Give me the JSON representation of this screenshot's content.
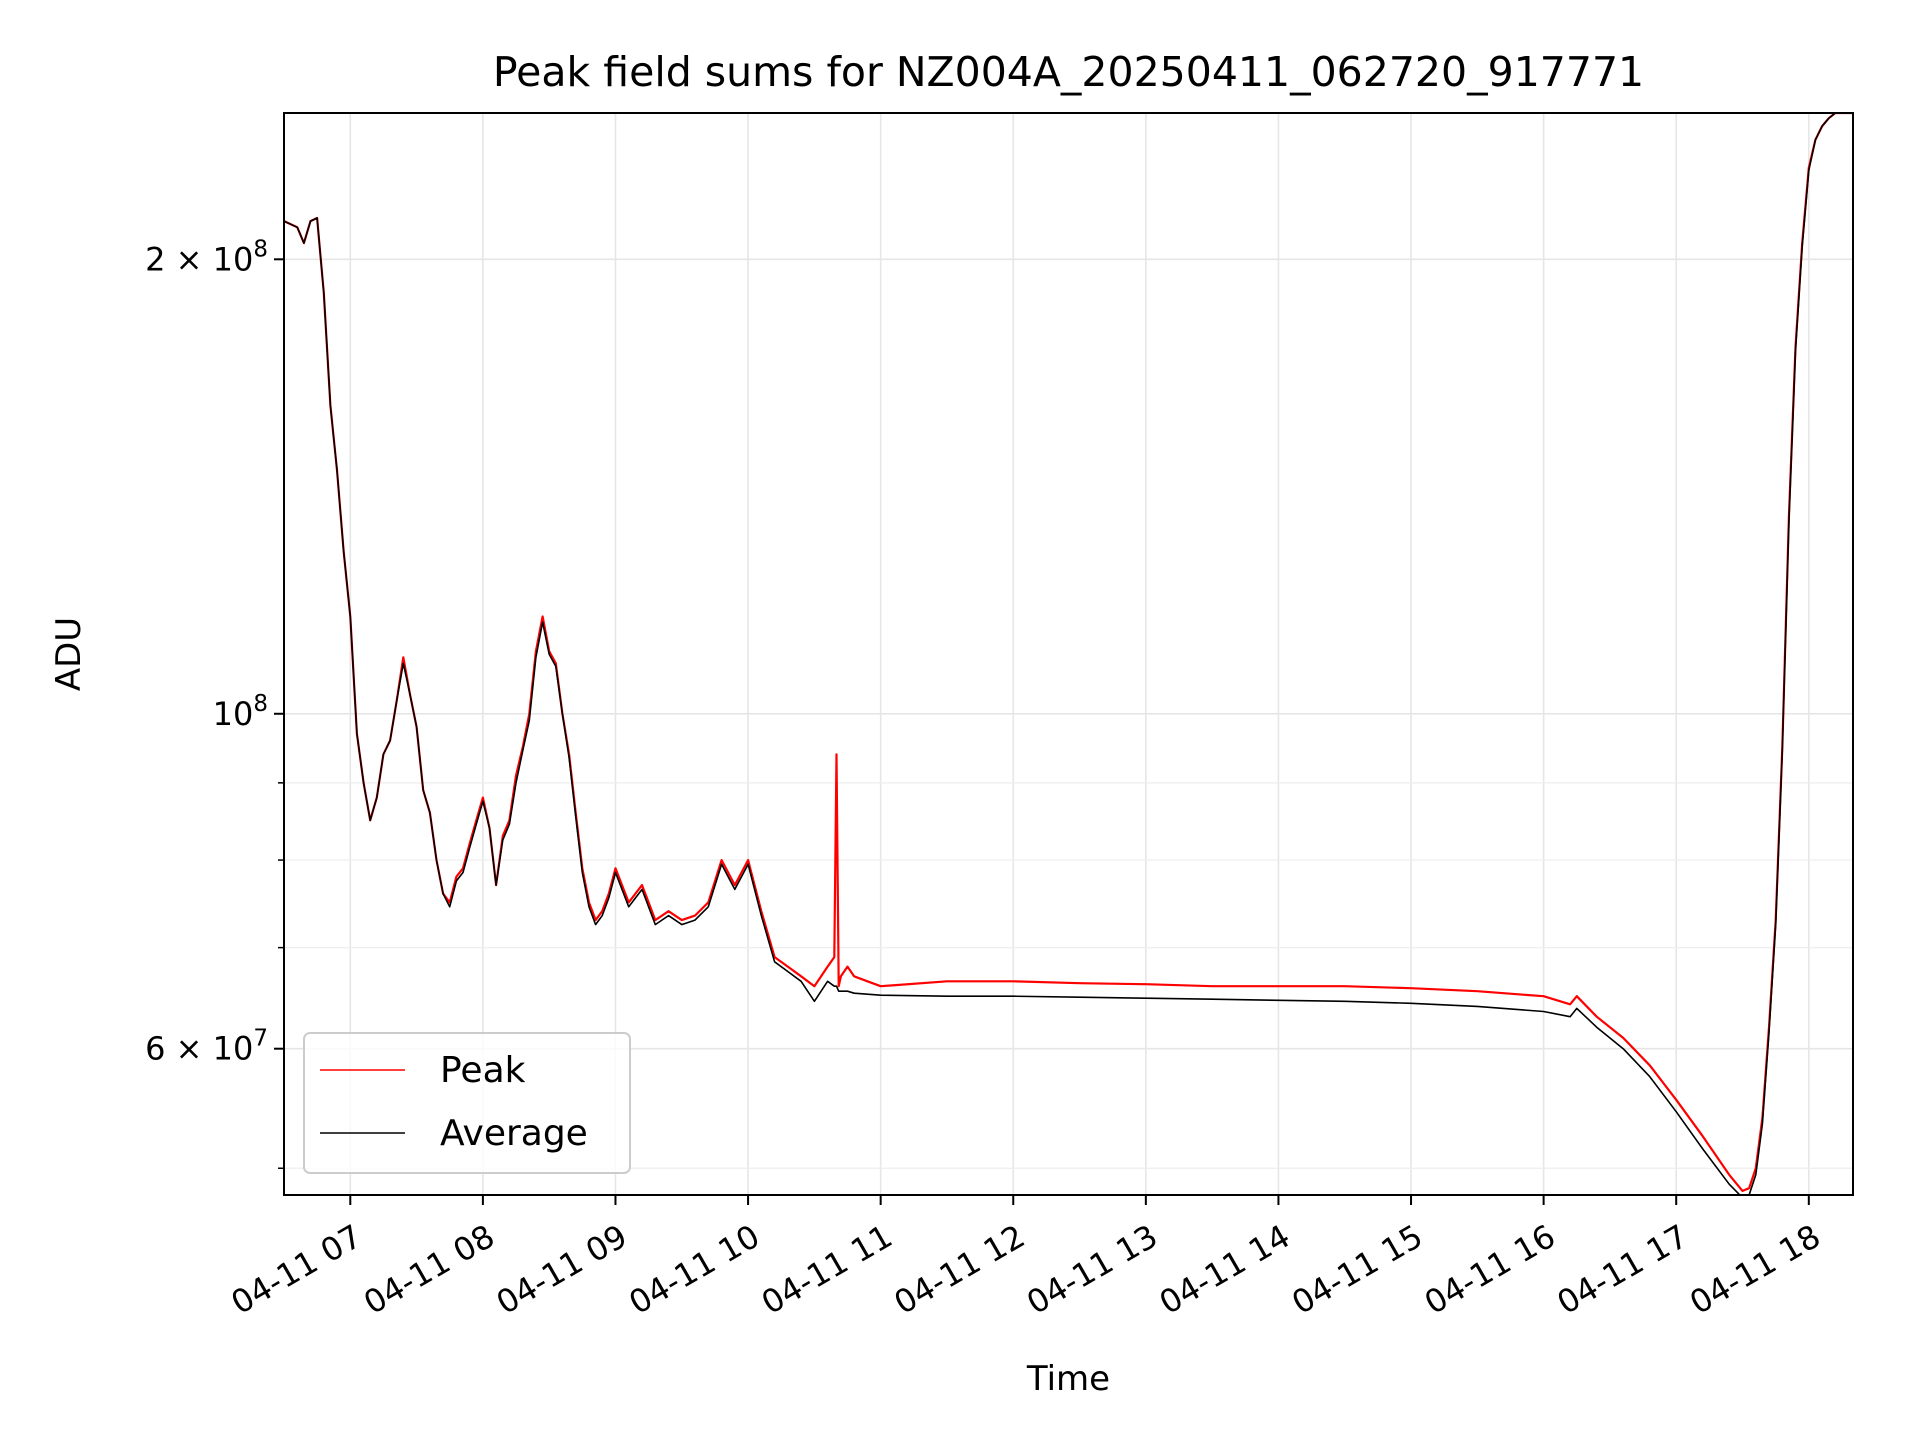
{
  "chart_data": {
    "type": "line",
    "title": "Peak field sums for NZ004A_20250411_062720_917771",
    "xlabel": "Time",
    "ylabel": "ADU",
    "yscale": "log",
    "grid": true,
    "legend_position": "lower-left",
    "xlim": [
      "2025-04-11 06:30",
      "2025-04-11 18:20"
    ],
    "ylim": [
      48000000,
      250000000
    ],
    "x_ticks": [
      {
        "value": "2025-04-11 07:00",
        "label": "04-11 07"
      },
      {
        "value": "2025-04-11 08:00",
        "label": "04-11 08"
      },
      {
        "value": "2025-04-11 09:00",
        "label": "04-11 09"
      },
      {
        "value": "2025-04-11 10:00",
        "label": "04-11 10"
      },
      {
        "value": "2025-04-11 11:00",
        "label": "04-11 11"
      },
      {
        "value": "2025-04-11 12:00",
        "label": "04-11 12"
      },
      {
        "value": "2025-04-11 13:00",
        "label": "04-11 13"
      },
      {
        "value": "2025-04-11 14:00",
        "label": "04-11 14"
      },
      {
        "value": "2025-04-11 15:00",
        "label": "04-11 15"
      },
      {
        "value": "2025-04-11 16:00",
        "label": "04-11 16"
      },
      {
        "value": "2025-04-11 17:00",
        "label": "04-11 17"
      },
      {
        "value": "2025-04-11 18:00",
        "label": "04-11 18"
      }
    ],
    "y_major_ticks": [
      {
        "value": 200000000,
        "mantissa": "2 × 10",
        "exponent": "8"
      },
      {
        "value": 100000000,
        "mantissa": "10",
        "exponent": "8"
      },
      {
        "value": 60000000,
        "mantissa": "6 × 10",
        "exponent": "7"
      }
    ],
    "y_minor_ticks": [
      50000000,
      70000000,
      80000000,
      90000000
    ],
    "series": [
      {
        "name": "Peak",
        "color": "#ff0000",
        "x": [
          "2025-04-11 06:30",
          "2025-04-11 06:36",
          "2025-04-11 06:39",
          "2025-04-11 06:42",
          "2025-04-11 06:45",
          "2025-04-11 06:48",
          "2025-04-11 06:51",
          "2025-04-11 06:54",
          "2025-04-11 06:57",
          "2025-04-11 07:00",
          "2025-04-11 07:03",
          "2025-04-11 07:06",
          "2025-04-11 07:09",
          "2025-04-11 07:12",
          "2025-04-11 07:15",
          "2025-04-11 07:18",
          "2025-04-11 07:21",
          "2025-04-11 07:24",
          "2025-04-11 07:27",
          "2025-04-11 07:30",
          "2025-04-11 07:33",
          "2025-04-11 07:36",
          "2025-04-11 07:39",
          "2025-04-11 07:42",
          "2025-04-11 07:45",
          "2025-04-11 07:48",
          "2025-04-11 07:51",
          "2025-04-11 07:54",
          "2025-04-11 07:57",
          "2025-04-11 08:00",
          "2025-04-11 08:03",
          "2025-04-11 08:06",
          "2025-04-11 08:09",
          "2025-04-11 08:12",
          "2025-04-11 08:15",
          "2025-04-11 08:18",
          "2025-04-11 08:21",
          "2025-04-11 08:24",
          "2025-04-11 08:27",
          "2025-04-11 08:30",
          "2025-04-11 08:33",
          "2025-04-11 08:36",
          "2025-04-11 08:39",
          "2025-04-11 08:42",
          "2025-04-11 08:45",
          "2025-04-11 08:48",
          "2025-04-11 08:51",
          "2025-04-11 08:54",
          "2025-04-11 08:57",
          "2025-04-11 09:00",
          "2025-04-11 09:06",
          "2025-04-11 09:12",
          "2025-04-11 09:15",
          "2025-04-11 09:18",
          "2025-04-11 09:24",
          "2025-04-11 09:30",
          "2025-04-11 09:36",
          "2025-04-11 09:42",
          "2025-04-11 09:48",
          "2025-04-11 09:54",
          "2025-04-11 10:00",
          "2025-04-11 10:06",
          "2025-04-11 10:12",
          "2025-04-11 10:18",
          "2025-04-11 10:24",
          "2025-04-11 10:30",
          "2025-04-11 10:36",
          "2025-04-11 10:39",
          "2025-04-11 10:40",
          "2025-04-11 10:41",
          "2025-04-11 10:42",
          "2025-04-11 10:45",
          "2025-04-11 10:48",
          "2025-04-11 10:54",
          "2025-04-11 11:00",
          "2025-04-11 11:30",
          "2025-04-11 12:00",
          "2025-04-11 12:30",
          "2025-04-11 13:00",
          "2025-04-11 13:30",
          "2025-04-11 14:00",
          "2025-04-11 14:30",
          "2025-04-11 15:00",
          "2025-04-11 15:30",
          "2025-04-11 16:00",
          "2025-04-11 16:12",
          "2025-04-11 16:15",
          "2025-04-11 16:24",
          "2025-04-11 16:36",
          "2025-04-11 16:48",
          "2025-04-11 17:00",
          "2025-04-11 17:12",
          "2025-04-11 17:24",
          "2025-04-11 17:30",
          "2025-04-11 17:33",
          "2025-04-11 17:36",
          "2025-04-11 17:39",
          "2025-04-11 17:42",
          "2025-04-11 17:45",
          "2025-04-11 17:48",
          "2025-04-11 17:51",
          "2025-04-11 17:54",
          "2025-04-11 17:57",
          "2025-04-11 18:00",
          "2025-04-11 18:03",
          "2025-04-11 18:06",
          "2025-04-11 18:09",
          "2025-04-11 18:12",
          "2025-04-11 18:15",
          "2025-04-11 18:20"
        ],
        "y": [
          212000000,
          210000000,
          205000000,
          212000000,
          213000000,
          190000000,
          160000000,
          145000000,
          128000000,
          116000000,
          97000000,
          90000000,
          85000000,
          88000000,
          94000000,
          96000000,
          102000000,
          109000000,
          103000000,
          98000000,
          89000000,
          86000000,
          80000000,
          76000000,
          75000000,
          78000000,
          79000000,
          82000000,
          85000000,
          88000000,
          84000000,
          77000000,
          83000000,
          85000000,
          91000000,
          95000000,
          100000000,
          110000000,
          116000000,
          110000000,
          108000000,
          100000000,
          94000000,
          86000000,
          79000000,
          75000000,
          73000000,
          74000000,
          76000000,
          79000000,
          75000000,
          77000000,
          75000000,
          73000000,
          74000000,
          73000000,
          73500000,
          75000000,
          80000000,
          77000000,
          80000000,
          74000000,
          69000000,
          68000000,
          67000000,
          66000000,
          68000000,
          69000000,
          94000000,
          66000000,
          67000000,
          68000000,
          67000000,
          66500000,
          66000000,
          66500000,
          66500000,
          66300000,
          66200000,
          66000000,
          66000000,
          66000000,
          65800000,
          65500000,
          65000000,
          64200000,
          65000000,
          63000000,
          61000000,
          58500000,
          55500000,
          52500000,
          49500000,
          48300000,
          48500000,
          50000000,
          54000000,
          62000000,
          73000000,
          95000000,
          135000000,
          175000000,
          205000000,
          230000000,
          240000000,
          245000000,
          248000000,
          250000000,
          250000000,
          250000000
        ]
      },
      {
        "name": "Average",
        "color": "#000000",
        "x": [
          "2025-04-11 06:30",
          "2025-04-11 06:36",
          "2025-04-11 06:39",
          "2025-04-11 06:42",
          "2025-04-11 06:45",
          "2025-04-11 06:48",
          "2025-04-11 06:51",
          "2025-04-11 06:54",
          "2025-04-11 06:57",
          "2025-04-11 07:00",
          "2025-04-11 07:03",
          "2025-04-11 07:06",
          "2025-04-11 07:09",
          "2025-04-11 07:12",
          "2025-04-11 07:15",
          "2025-04-11 07:18",
          "2025-04-11 07:21",
          "2025-04-11 07:24",
          "2025-04-11 07:27",
          "2025-04-11 07:30",
          "2025-04-11 07:33",
          "2025-04-11 07:36",
          "2025-04-11 07:39",
          "2025-04-11 07:42",
          "2025-04-11 07:45",
          "2025-04-11 07:48",
          "2025-04-11 07:51",
          "2025-04-11 07:54",
          "2025-04-11 07:57",
          "2025-04-11 08:00",
          "2025-04-11 08:03",
          "2025-04-11 08:06",
          "2025-04-11 08:09",
          "2025-04-11 08:12",
          "2025-04-11 08:15",
          "2025-04-11 08:18",
          "2025-04-11 08:21",
          "2025-04-11 08:24",
          "2025-04-11 08:27",
          "2025-04-11 08:30",
          "2025-04-11 08:33",
          "2025-04-11 08:36",
          "2025-04-11 08:39",
          "2025-04-11 08:42",
          "2025-04-11 08:45",
          "2025-04-11 08:48",
          "2025-04-11 08:51",
          "2025-04-11 08:54",
          "2025-04-11 08:57",
          "2025-04-11 09:00",
          "2025-04-11 09:06",
          "2025-04-11 09:12",
          "2025-04-11 09:15",
          "2025-04-11 09:18",
          "2025-04-11 09:24",
          "2025-04-11 09:30",
          "2025-04-11 09:36",
          "2025-04-11 09:42",
          "2025-04-11 09:48",
          "2025-04-11 09:54",
          "2025-04-11 10:00",
          "2025-04-11 10:06",
          "2025-04-11 10:12",
          "2025-04-11 10:18",
          "2025-04-11 10:24",
          "2025-04-11 10:30",
          "2025-04-11 10:36",
          "2025-04-11 10:39",
          "2025-04-11 10:40",
          "2025-04-11 10:41",
          "2025-04-11 10:42",
          "2025-04-11 10:45",
          "2025-04-11 10:48",
          "2025-04-11 10:54",
          "2025-04-11 11:00",
          "2025-04-11 11:30",
          "2025-04-11 12:00",
          "2025-04-11 12:30",
          "2025-04-11 13:00",
          "2025-04-11 13:30",
          "2025-04-11 14:00",
          "2025-04-11 14:30",
          "2025-04-11 15:00",
          "2025-04-11 15:30",
          "2025-04-11 16:00",
          "2025-04-11 16:12",
          "2025-04-11 16:15",
          "2025-04-11 16:24",
          "2025-04-11 16:36",
          "2025-04-11 16:48",
          "2025-04-11 17:00",
          "2025-04-11 17:12",
          "2025-04-11 17:24",
          "2025-04-11 17:30",
          "2025-04-11 17:33",
          "2025-04-11 17:36",
          "2025-04-11 17:39",
          "2025-04-11 17:42",
          "2025-04-11 17:45",
          "2025-04-11 17:48",
          "2025-04-11 17:51",
          "2025-04-11 17:54",
          "2025-04-11 17:57",
          "2025-04-11 18:00",
          "2025-04-11 18:03",
          "2025-04-11 18:06",
          "2025-04-11 18:09",
          "2025-04-11 18:12",
          "2025-04-11 18:15",
          "2025-04-11 18:20"
        ],
        "y": [
          212000000,
          210000000,
          205000000,
          212000000,
          213000000,
          190000000,
          160000000,
          145000000,
          128000000,
          116000000,
          97000000,
          90000000,
          85000000,
          88000000,
          94000000,
          96000000,
          102000000,
          108000000,
          103000000,
          98000000,
          89000000,
          86000000,
          80000000,
          76000000,
          74500000,
          77500000,
          78500000,
          81500000,
          84500000,
          87500000,
          84000000,
          77000000,
          82500000,
          84500000,
          90000000,
          94500000,
          99000000,
          109000000,
          115000000,
          109500000,
          107500000,
          100000000,
          93500000,
          85500000,
          78500000,
          74500000,
          72500000,
          73500000,
          75500000,
          78500000,
          74500000,
          76500000,
          74500000,
          72500000,
          73500000,
          72500000,
          73000000,
          74500000,
          79500000,
          76500000,
          79500000,
          73500000,
          68500000,
          67500000,
          66500000,
          64500000,
          66500000,
          66000000,
          66000000,
          65500000,
          65500000,
          65500000,
          65300000,
          65200000,
          65100000,
          65000000,
          65000000,
          64900000,
          64800000,
          64700000,
          64600000,
          64500000,
          64300000,
          64000000,
          63500000,
          63000000,
          63800000,
          62000000,
          60000000,
          57500000,
          54500000,
          51500000,
          48800000,
          47800000,
          48000000,
          49500000,
          53500000,
          61500000,
          72500000,
          94500000,
          134000000,
          174000000,
          204000000,
          229000000,
          240000000,
          245000000,
          248000000,
          250000000,
          250000000,
          250000000
        ]
      }
    ]
  }
}
